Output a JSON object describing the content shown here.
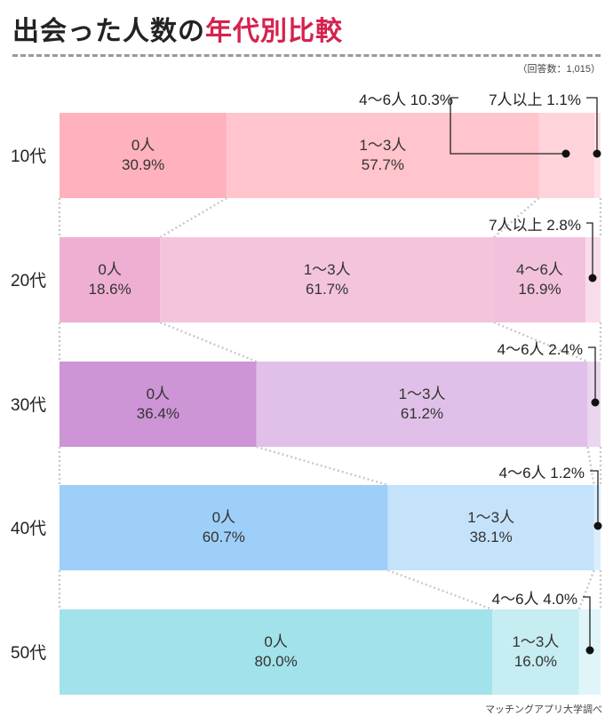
{
  "title": {
    "main": "出会った人数の",
    "accent": "年代別比較"
  },
  "respondents_note": "（回答数：1,015）",
  "source": "マッチングアプリ大学調べ",
  "colors": {
    "accent": "#d5224f",
    "rows": [
      [
        "#ffb1bd",
        "#ffc4cc",
        "#ffd3da",
        "#ffe3e8"
      ],
      [
        "#eeafd2",
        "#f4c4dd",
        "#f2c2dc",
        "#f8dcea"
      ],
      [
        "#cd94d6",
        "#e0c0e8",
        "#ead6ef",
        "#f3e8f6"
      ],
      [
        "#9ecff8",
        "#c4e3fb",
        "#dceefc",
        "#eaf5fd"
      ],
      [
        "#a2e2ea",
        "#c5edf2",
        "#dff5f8",
        "#eefafb"
      ]
    ]
  },
  "chart_data": {
    "type": "bar",
    "orientation": "horizontal",
    "stacked": "100%",
    "categories": [
      "10代",
      "20代",
      "30代",
      "40代",
      "50代"
    ],
    "series": [
      {
        "name": "0人",
        "values": [
          30.9,
          18.6,
          36.4,
          60.7,
          80.0
        ]
      },
      {
        "name": "1〜3人",
        "values": [
          57.7,
          61.7,
          61.2,
          38.1,
          16.0
        ]
      },
      {
        "name": "4〜6人",
        "values": [
          10.3,
          16.9,
          2.4,
          1.2,
          4.0
        ]
      },
      {
        "name": "7人以上",
        "values": [
          1.1,
          2.8,
          0.0,
          0.0,
          0.0
        ]
      }
    ],
    "inside_labels": [
      [
        true,
        true,
        false,
        false
      ],
      [
        true,
        true,
        true,
        false
      ],
      [
        true,
        true,
        false,
        false
      ],
      [
        true,
        true,
        false,
        false
      ],
      [
        true,
        true,
        false,
        false
      ]
    ],
    "callout_labels": [
      [
        "10代",
        "4〜6人",
        "4〜6人  10.3%"
      ],
      [
        "10代",
        "7人以上",
        "7人以上  1.1%"
      ],
      [
        "20代",
        "7人以上",
        "7人以上  2.8%"
      ],
      [
        "30代",
        "4〜6人",
        "4〜6人  2.4%"
      ],
      [
        "40代",
        "4〜6人",
        "4〜6人  1.2%"
      ],
      [
        "50代",
        "4〜6人",
        "4〜6人  4.0%"
      ]
    ],
    "xlim": [
      0,
      100
    ],
    "grid": false
  }
}
